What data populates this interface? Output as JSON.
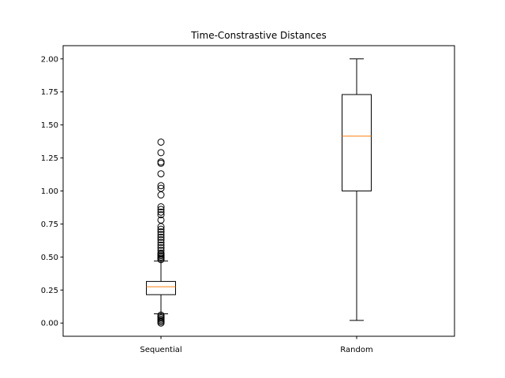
{
  "chart_data": {
    "type": "box",
    "title": "Time-Constrastive Distances",
    "xlabel": "",
    "ylabel": "",
    "categories": [
      "Sequential",
      "Random"
    ],
    "ylim": [
      -0.1,
      2.1
    ],
    "yticks": [
      "0.00",
      "0.25",
      "0.50",
      "0.75",
      "1.00",
      "1.25",
      "1.50",
      "1.75",
      "2.00"
    ],
    "grid": false,
    "colors": {
      "box": "#000000",
      "median": "#ff7f0e",
      "background": "#ffffff"
    },
    "series": [
      {
        "whisker_low": 0.07,
        "q1": 0.215,
        "median": 0.275,
        "q3": 0.315,
        "whisker_high": 0.47,
        "outliers": [
          0.0,
          0.01,
          0.02,
          0.03,
          0.04,
          0.05,
          0.06,
          0.48,
          0.49,
          0.5,
          0.51,
          0.52,
          0.53,
          0.55,
          0.57,
          0.59,
          0.61,
          0.63,
          0.65,
          0.67,
          0.69,
          0.71,
          0.73,
          0.78,
          0.82,
          0.84,
          0.86,
          0.88,
          0.97,
          1.02,
          1.04,
          1.13,
          1.21,
          1.22,
          1.29,
          1.37
        ]
      },
      {
        "whisker_low": 0.02,
        "q1": 1.0,
        "median": 1.415,
        "q3": 1.73,
        "whisker_high": 2.0,
        "outliers": []
      }
    ]
  }
}
